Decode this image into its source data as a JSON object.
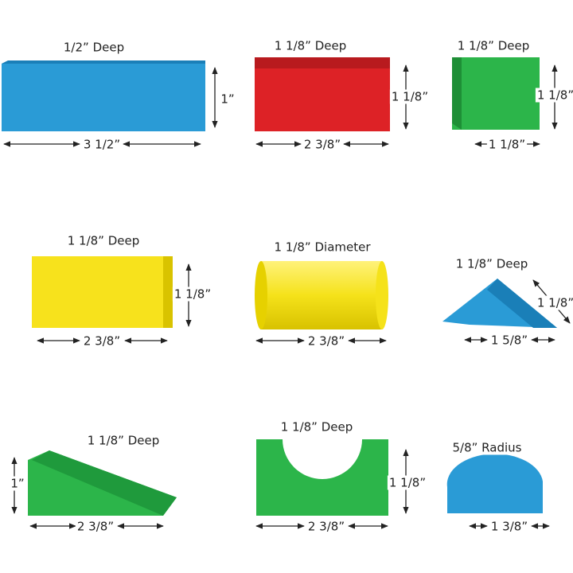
{
  "blocks": [
    {
      "depth": "1/2” Deep",
      "height": "1”",
      "width": "3 1/2”"
    },
    {
      "depth": "1 1/8” Deep",
      "height": "1 1/8”",
      "width": "2 3/8”"
    },
    {
      "depth": "1 1/8” Deep",
      "height": "1 1/8”",
      "width": "1 1/8”"
    },
    {
      "depth": "1 1/8” Deep",
      "height": "1 1/8”",
      "width": "2 3/8”"
    },
    {
      "depth": "1 1/8” Diameter",
      "width": "2 3/8”"
    },
    {
      "depth": "1 1/8” Deep",
      "height": "1 1/8”",
      "width": "1 5/8”"
    },
    {
      "depth": "1 1/8” Deep",
      "height": "1”",
      "width": "2 3/8”"
    },
    {
      "depth": "1 1/8” Deep",
      "height": "1 1/8”",
      "width": "2 3/8”"
    },
    {
      "depth": "5/8” Radius",
      "width": "1 3/8”"
    }
  ]
}
